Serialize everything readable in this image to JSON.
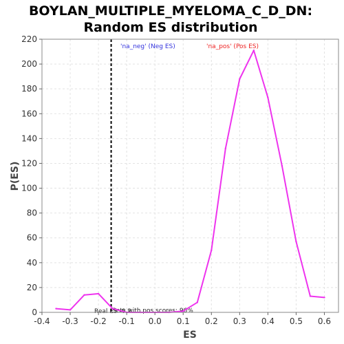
{
  "chart_data": {
    "type": "line",
    "title_lines": [
      "BOYLAN_MULTIPLE_MYELOMA_C_D_DN:",
      "Random ES distribution"
    ],
    "xlabel": "ES",
    "ylabel": "P(ES)",
    "xlim": [
      -0.4,
      0.65
    ],
    "ylim": [
      0,
      220
    ],
    "x_ticks": [
      -0.4,
      -0.3,
      -0.2,
      -0.1,
      0.0,
      0.1,
      0.2,
      0.3,
      0.4,
      0.5,
      0.6
    ],
    "x_tick_labels": [
      "-0.4",
      "-0.3",
      "-0.2",
      "-0.1",
      "0.0",
      "0.1",
      "0.2",
      "0.3",
      "0.4",
      "0.5",
      "0.6"
    ],
    "y_ticks": [
      0,
      20,
      40,
      60,
      80,
      100,
      120,
      140,
      160,
      180,
      200,
      220
    ],
    "y_tick_labels": [
      "0",
      "20",
      "40",
      "60",
      "80",
      "100",
      "120",
      "140",
      "160",
      "180",
      "200",
      "220"
    ],
    "grid": true,
    "series": [
      {
        "color": "#ee33ee",
        "x": [
          -0.35,
          -0.3,
          -0.25,
          -0.2,
          -0.15,
          -0.1,
          -0.05,
          0.0,
          0.05,
          0.1,
          0.15,
          0.2,
          0.25,
          0.3,
          0.35,
          0.4,
          0.45,
          0.5,
          0.55,
          0.6
        ],
        "y": [
          3,
          2,
          14,
          15,
          3,
          0,
          0,
          0,
          0,
          1,
          8,
          50,
          132,
          188,
          211,
          173,
          118,
          57,
          13,
          12
        ]
      }
    ],
    "real_es": -0.155,
    "annotations": {
      "neg_label": "'na_neg' (Neg ES)",
      "pos_label": "'na_pos' (Pos ES)",
      "real_es_label": "Real ES -0.2",
      "pos_scores_label": "Sets with pos scores: 96%"
    },
    "colors": {
      "neg": "#3333dd",
      "pos": "#ee2222",
      "real_es_line": "#000000"
    }
  }
}
